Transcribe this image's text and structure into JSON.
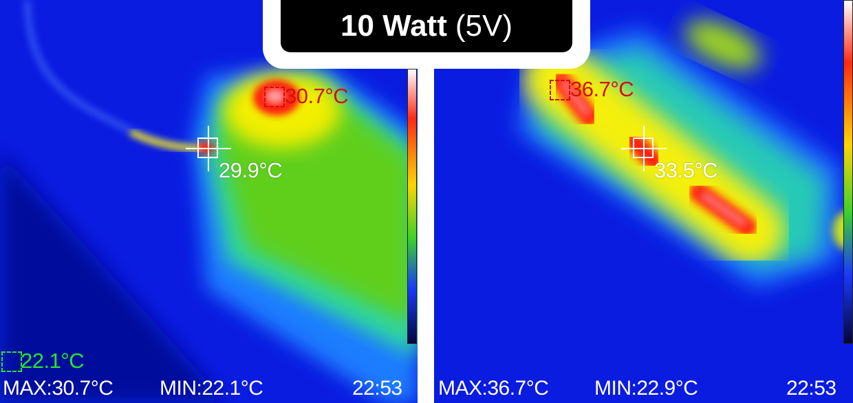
{
  "title": {
    "bold": "10 Watt",
    "normal": "(5V)"
  },
  "left_panel": {
    "max_spot_label": "30.7°C",
    "center_spot_label": "29.9°C",
    "min_spot_label": "22.1°C",
    "footer_max": "MAX:30.7°C",
    "footer_min": "MIN:22.1°C",
    "footer_time": "22:53"
  },
  "right_panel": {
    "max_spot_label": "36.7°C",
    "center_spot_label": "33.5°C",
    "footer_max": "MAX:36.7°C",
    "footer_min": "MIN:22.9°C",
    "footer_time": "22:53"
  },
  "colors": {
    "background_blue": "#0a1ce0",
    "hot_red": "#ff1a0a",
    "warm_yellow": "#f4f000",
    "mid_green": "#55d11e",
    "label_red": "#d11010",
    "label_green": "#27e62a"
  }
}
